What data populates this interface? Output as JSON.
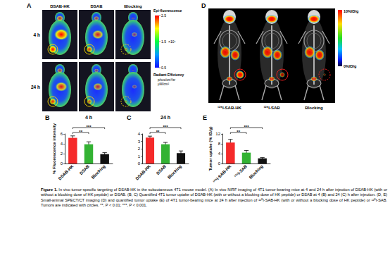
{
  "figure": {
    "letters": [
      "A",
      "B",
      "C",
      "D",
      "E"
    ],
    "panel_a": {
      "columns": [
        "DSAB-HK",
        "DSAB",
        "Blocking"
      ],
      "rows": [
        "4 h",
        "24 h"
      ],
      "colorbar": {
        "title": "Epi-fluorescence",
        "range": [
          0.5,
          2.5
        ],
        "ticks": [
          2.5,
          1.5,
          0.5
        ],
        "multiplier": "×10⁸",
        "unit_title": "Radiant Efficiency",
        "unit": [
          "p/sec/cm²/sr",
          "µW/cm²"
        ]
      }
    },
    "panel_d": {
      "columns": [
        "¹²⁵I-SAB-HK",
        "¹²⁵I-SAB",
        "Blocking"
      ],
      "colorbar": {
        "max_label": "10%ID/g",
        "min_label": "0%ID/g"
      }
    },
    "caption_label": "Figure 1.",
    "caption": "In vivo tumor-specific targeting of DSAB-HK in the subcutaneous 4T1 mouse model. (A) In vivo NIRF imaging of 4T1 tumor-bearing mice at 4 and 24 h after injection of DSAB-HK (with or without a blocking dose of HK peptide) or DSAB. (B, C) Quantified 4T1 tumor uptake of DSAB-HK (with or without a blocking dose of HK peptide) or DSAB at 4 (B) and 24 (C) h after injection. (D, E) Small-animal SPECT/CT imaging (D) and quantified tumor uptake (E) of 4T1 tumor-bearing mice at 24 h after injection of ¹²⁵I-SAB-HK (with or without a blocking dose of HK peptide) or ¹²⁵I-SAB. Tumors are indicated with circles. **, P < 0.01; ***, P < 0.001."
  },
  "chart_data": [
    {
      "type": "bar",
      "title": "4 h",
      "ylabel": "% Fluorescence intensity",
      "categories": [
        "DSAB-HK",
        "DSAB",
        "Blocking"
      ],
      "values": [
        5.2,
        3.9,
        1.9
      ],
      "errors": [
        0.4,
        0.5,
        0.3
      ],
      "colors": [
        "#f52a2a",
        "#33b233",
        "#111111"
      ],
      "ylim": [
        0,
        6
      ],
      "yticks": [
        0,
        2,
        4,
        6
      ],
      "grid": false,
      "annotations": [
        {
          "text": "**",
          "from": "DSAB-HK",
          "to": "DSAB"
        },
        {
          "text": "***",
          "from": "DSAB-HK",
          "to": "Blocking"
        }
      ]
    },
    {
      "type": "bar",
      "title": "24 h",
      "categories": [
        "DSAB-HK",
        "DSAB",
        "Blocking"
      ],
      "values": [
        3.5,
        2.6,
        1.4
      ],
      "errors": [
        0.2,
        0.25,
        0.3
      ],
      "colors": [
        "#f52a2a",
        "#33b233",
        "#111111"
      ],
      "ylim": [
        0,
        4
      ],
      "yticks": [
        0,
        1,
        2,
        3,
        4
      ],
      "grid": false,
      "annotations": [
        {
          "text": "**",
          "from": "DSAB-HK",
          "to": "DSAB"
        },
        {
          "text": "***",
          "from": "DSAB-HK",
          "to": "Blocking"
        }
      ]
    },
    {
      "type": "bar",
      "ylabel": "Tumor uptake (% ID/g)",
      "categories": [
        "¹²⁵I-SAB-HK",
        "¹²⁵I-SAB",
        "Blocking"
      ],
      "values": [
        8.5,
        4.4,
        2.1
      ],
      "errors": [
        1.3,
        0.9,
        0.3
      ],
      "colors": [
        "#f52a2a",
        "#33b233",
        "#111111"
      ],
      "ylim": [
        0,
        12
      ],
      "yticks": [
        0,
        4,
        8,
        12
      ],
      "grid": false,
      "annotations": [
        {
          "text": "**",
          "from": "¹²⁵I-SAB-HK",
          "to": "¹²⁵I-SAB"
        },
        {
          "text": "***",
          "from": "¹²⁵I-SAB-HK",
          "to": "Blocking"
        }
      ]
    }
  ]
}
